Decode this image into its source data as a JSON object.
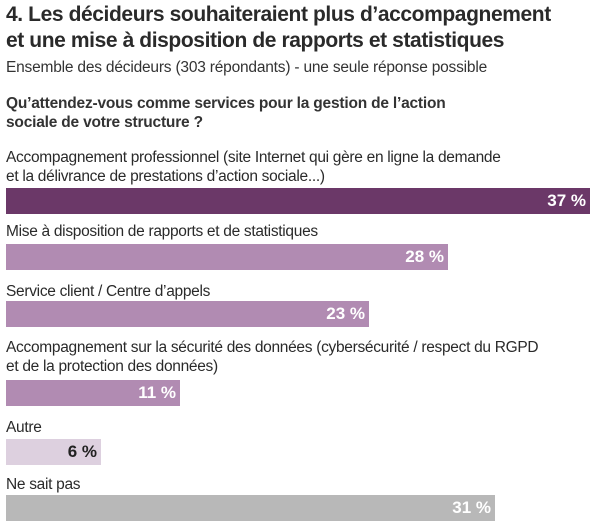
{
  "header": {
    "title_line1": "4. Les décideurs souhaiteraient plus d’accompagnement",
    "title_line2": "et une mise à disposition de rapports et statistiques",
    "subtitle": "Ensemble des décideurs (303 répondants) - une seule réponse possible",
    "question_line1": "Qu’attendez-vous comme services pour la gestion de l’action",
    "question_line2": "sociale de votre structure ?"
  },
  "chart_data": {
    "type": "bar",
    "orientation": "horizontal",
    "title": "4. Les décideurs souhaiteraient plus d’accompagnement et une mise à disposition de rapports et statistiques",
    "subtitle": "Ensemble des décideurs (303 répondants) - une seule réponse possible",
    "question": "Qu’attendez-vous comme services pour la gestion de l’action sociale de votre structure ?",
    "unit": "%",
    "xlim": [
      0,
      37
    ],
    "categories": [
      {
        "line1": "Accompagnement professionnel (site Internet qui gère en ligne la demande",
        "line2": "et la délivrance de prestations d’action sociale...)",
        "value": 37,
        "label": "37 %",
        "color": "#6b3868",
        "text_color": "#ffffff"
      },
      {
        "line1": "Mise à disposition de rapports et de statistiques",
        "line2": "",
        "value": 28,
        "label": "28 %",
        "color": "#b18bb2",
        "text_color": "#ffffff"
      },
      {
        "line1": "Service client / Centre d’appels",
        "line2": "",
        "value": 23,
        "label": "23 %",
        "color": "#b18bb2",
        "text_color": "#ffffff"
      },
      {
        "line1": "Accompagnement sur la sécurité des données (cybersécurité / respect du RGPD",
        "line2": "et de la protection des données)",
        "value": 11,
        "label": "11 %",
        "color": "#b18bb2",
        "text_color": "#ffffff"
      },
      {
        "line1": "Autre",
        "line2": "",
        "value": 6,
        "label": "6 %",
        "color": "#ddd0df",
        "text_color": "#222222"
      },
      {
        "line1": "Ne sait pas",
        "line2": "",
        "value": 31,
        "label": "31 %",
        "color": "#b8b8b8",
        "text_color": "#ffffff"
      }
    ]
  }
}
